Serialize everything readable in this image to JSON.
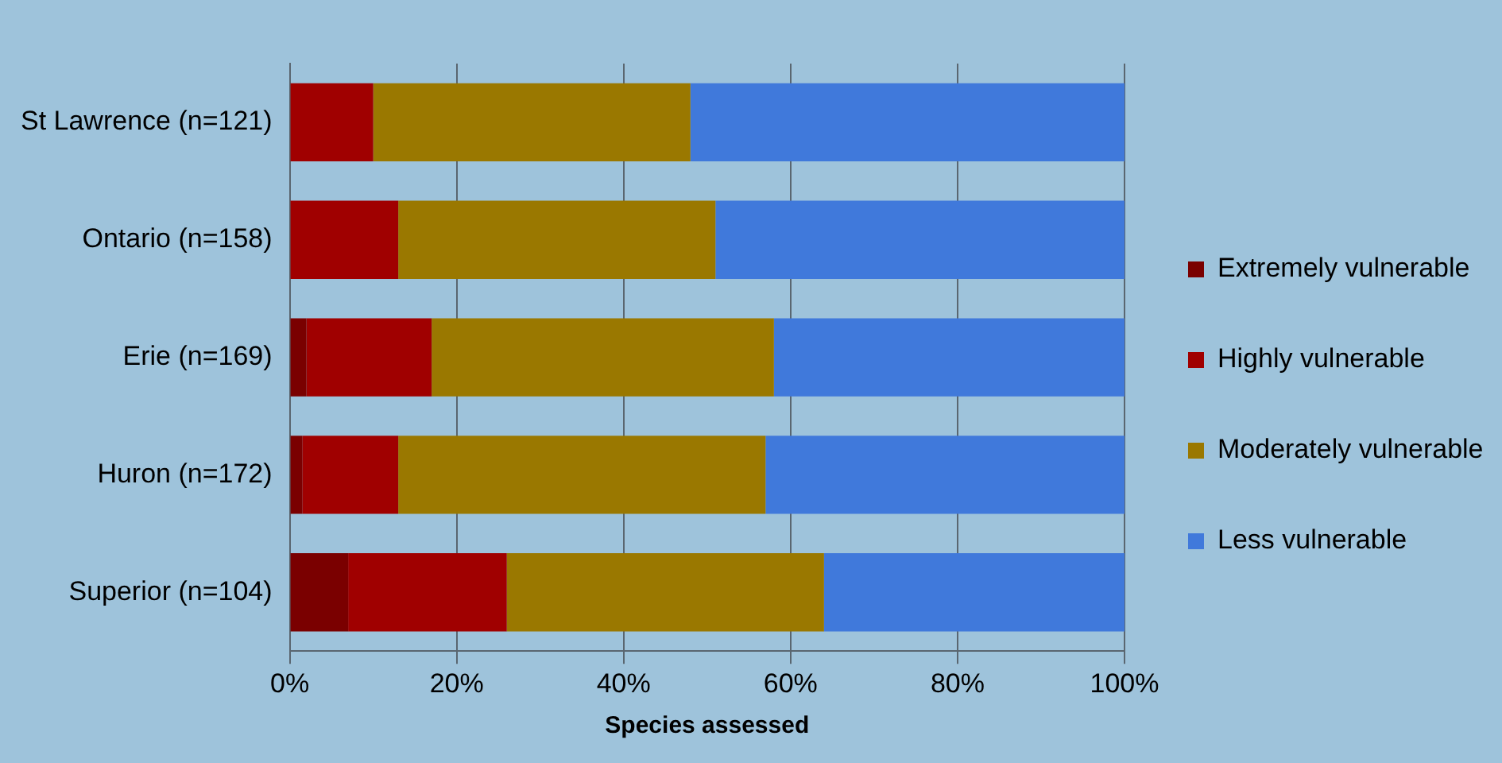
{
  "chart_data": {
    "type": "bar",
    "orientation": "horizontal",
    "stacked": true,
    "xlabel": "Species assessed",
    "categories": [
      "St Lawrence (n=121)",
      "Ontario (n=158)",
      "Erie (n=169)",
      "Huron (n=172)",
      "Superior (n=104)"
    ],
    "series": [
      {
        "name": "Extremely vulnerable",
        "color": "#7a0000",
        "values": [
          0,
          0,
          2,
          1.5,
          7
        ]
      },
      {
        "name": "Highly vulnerable",
        "color": "#a00000",
        "values": [
          10,
          13,
          15,
          11.5,
          19
        ]
      },
      {
        "name": "Moderately vulnerable",
        "color": "#9a7800",
        "values": [
          38,
          38,
          41,
          44,
          38
        ]
      },
      {
        "name": "Less vulnerable",
        "color": "#4079db",
        "values": [
          52,
          49,
          42,
          43,
          36
        ]
      }
    ],
    "xlim": [
      0,
      100
    ],
    "xticks": [
      {
        "value": 0,
        "label": "0%"
      },
      {
        "value": 20,
        "label": "20%"
      },
      {
        "value": 40,
        "label": "40%"
      },
      {
        "value": 60,
        "label": "60%"
      },
      {
        "value": 80,
        "label": "80%"
      },
      {
        "value": 100,
        "label": "100%"
      }
    ],
    "grid": "x",
    "legend": "right"
  }
}
